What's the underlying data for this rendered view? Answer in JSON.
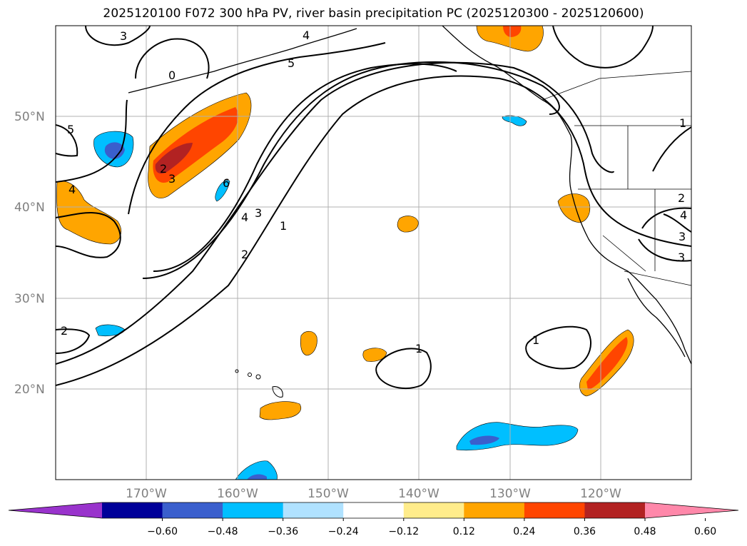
{
  "title": "2025120100 F072 300 hPa PV, river basin precipitation PC (2025120300 - 2025120600)",
  "lat_labels": [
    "50°N",
    "40°N",
    "30°N",
    "20°N"
  ],
  "lon_labels": [
    "170°W",
    "160°W",
    "150°W",
    "140°W",
    "130°W",
    "120°W"
  ],
  "colorbar": {
    "ticks": [
      "−0.60",
      "−0.48",
      "−0.36",
      "−0.24",
      "−0.12",
      "0.12",
      "0.24",
      "0.36",
      "0.48",
      "0.60"
    ],
    "colors": [
      "#9933cc",
      "#000099",
      "#3a5fcd",
      "#00bfff",
      "#b0e2ff",
      "#ffffff",
      "#ffec8b",
      "#ffa500",
      "#ff4500",
      "#b22222",
      "#ff88aa"
    ]
  },
  "contour_labels": [
    "3",
    "4",
    "5",
    "0",
    "5",
    "4",
    "2",
    "3",
    "6",
    "4",
    "3",
    "2",
    "1",
    "2",
    "1",
    "1",
    "1",
    "2",
    "4",
    "3",
    "3"
  ]
}
